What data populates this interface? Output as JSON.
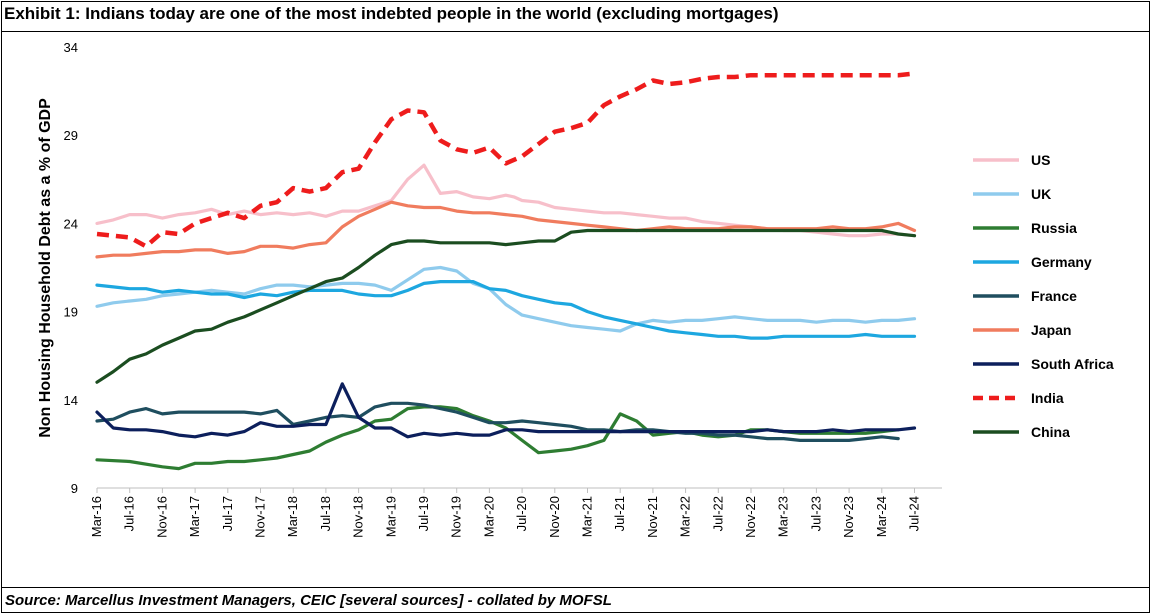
{
  "title": "Exhibit 1: Indians today are one of the most indebted people in the world (excluding mortgages)",
  "source": "Source: Marcellus Investment Managers, CEIC [several sources] - collated by MOFSL",
  "chart_data": {
    "type": "line",
    "ylabel": "Non Housing Household Debt as a % of GDP",
    "xlabel": "",
    "ylim": [
      9,
      34
    ],
    "yticks": [
      9,
      14,
      19,
      24,
      29,
      34
    ],
    "grid": false,
    "legend_position": "right",
    "x_tick_labels": [
      "Mar-16",
      "Jul-16",
      "Nov-16",
      "Mar-17",
      "Jul-17",
      "Nov-17",
      "Mar-18",
      "Jul-18",
      "Nov-18",
      "Mar-19",
      "Jul-19",
      "Nov-19",
      "Mar-20",
      "Jul-20",
      "Nov-20",
      "Mar-21",
      "Jul-21",
      "Nov-21",
      "Mar-22",
      "Jul-22",
      "Nov-22",
      "Mar-23",
      "Jul-23",
      "Nov-23",
      "Mar-24",
      "Jul-24"
    ],
    "x_note": "Quarterly observations; x index 0 = Mar-16, each tick = 1 quarter (4 months).",
    "series": [
      {
        "name": "US",
        "color": "#f7bfca",
        "dash": "solid",
        "x": [
          0,
          0.5,
          1,
          1.5,
          2,
          2.5,
          3,
          3.5,
          4,
          4.5,
          5,
          5.5,
          6,
          6.5,
          7,
          7.5,
          8,
          8.5,
          9,
          9.5,
          10,
          10.5,
          11,
          11.5,
          12,
          12.5,
          12.75,
          13,
          13.5,
          14,
          14.5,
          15,
          15.5,
          16,
          16.5,
          17,
          17.5,
          18,
          18.5,
          19,
          19.5,
          20,
          20.5,
          21,
          21.5,
          22,
          22.5,
          23,
          23.5,
          24,
          24.5,
          25
        ],
        "values": [
          24.0,
          24.2,
          24.5,
          24.5,
          24.3,
          24.5,
          24.6,
          24.8,
          24.5,
          24.7,
          24.5,
          24.6,
          24.5,
          24.6,
          24.4,
          24.7,
          24.7,
          25.0,
          25.3,
          26.5,
          27.3,
          25.7,
          25.8,
          25.5,
          25.4,
          25.6,
          25.5,
          25.3,
          25.2,
          24.9,
          24.8,
          24.7,
          24.6,
          24.6,
          24.5,
          24.4,
          24.3,
          24.3,
          24.1,
          24.0,
          23.9,
          23.8,
          23.7,
          23.6,
          23.6,
          23.5,
          23.4,
          23.3,
          23.3,
          23.4,
          23.4,
          23.3
        ]
      },
      {
        "name": "UK",
        "color": "#8fcbed",
        "dash": "solid",
        "x": [
          0,
          0.5,
          1,
          1.5,
          2,
          2.5,
          3,
          3.5,
          4,
          4.5,
          5,
          5.5,
          6,
          6.5,
          7,
          7.5,
          8,
          8.5,
          9,
          9.5,
          10,
          10.5,
          11,
          11.5,
          12,
          12.5,
          13,
          13.5,
          14,
          14.5,
          15,
          15.5,
          16,
          16.5,
          17,
          17.5,
          18,
          18.5,
          19,
          19.5,
          20,
          20.5,
          21,
          21.5,
          22,
          22.5,
          23,
          23.5,
          24,
          24.5,
          25
        ],
        "values": [
          19.3,
          19.5,
          19.6,
          19.7,
          19.9,
          20.0,
          20.1,
          20.2,
          20.1,
          20.0,
          20.3,
          20.5,
          20.5,
          20.4,
          20.5,
          20.6,
          20.6,
          20.5,
          20.2,
          20.8,
          21.4,
          21.5,
          21.3,
          20.6,
          20.3,
          19.4,
          18.8,
          18.6,
          18.4,
          18.2,
          18.1,
          18.0,
          17.9,
          18.3,
          18.5,
          18.4,
          18.5,
          18.5,
          18.6,
          18.7,
          18.6,
          18.5,
          18.5,
          18.5,
          18.4,
          18.5,
          18.5,
          18.4,
          18.5,
          18.5,
          18.6
        ]
      },
      {
        "name": "Russia",
        "color": "#2e7d32",
        "dash": "solid",
        "x": [
          0,
          1,
          2,
          2.5,
          3,
          3.5,
          4,
          4.5,
          5,
          5.5,
          6,
          6.5,
          7,
          7.5,
          8,
          8.5,
          9,
          9.5,
          10,
          10.5,
          11,
          11.5,
          12,
          12.5,
          13,
          13.5,
          14,
          14.5,
          15,
          15.5,
          16,
          16.5,
          17,
          17.5,
          18,
          18.5,
          19,
          19.5,
          20,
          20.5,
          21,
          21.5,
          22,
          22.5,
          23,
          23.5,
          24,
          24.5
        ],
        "values": [
          10.6,
          10.5,
          10.2,
          10.1,
          10.4,
          10.4,
          10.5,
          10.5,
          10.6,
          10.7,
          10.9,
          11.1,
          11.6,
          12.0,
          12.3,
          12.8,
          12.9,
          13.5,
          13.6,
          13.6,
          13.5,
          13.1,
          12.8,
          12.4,
          11.7,
          11.0,
          11.1,
          11.2,
          11.4,
          11.7,
          13.2,
          12.8,
          12.0,
          12.1,
          12.2,
          12.0,
          11.9,
          12.0,
          12.3,
          12.3,
          12.2,
          12.1,
          12.1,
          12.1,
          12.1,
          12.1,
          12.2,
          12.3
        ]
      },
      {
        "name": "Germany",
        "color": "#1da7e0",
        "dash": "solid",
        "x": [
          0,
          0.5,
          1,
          1.5,
          2,
          2.5,
          3,
          3.5,
          4,
          4.5,
          5,
          5.5,
          6,
          6.5,
          7,
          7.5,
          8,
          8.5,
          9,
          9.5,
          10,
          10.5,
          11,
          11.5,
          12,
          12.5,
          13,
          13.5,
          14,
          14.5,
          15,
          15.5,
          16,
          16.5,
          17,
          17.5,
          18,
          18.5,
          19,
          19.5,
          20,
          20.5,
          21,
          21.5,
          22,
          22.5,
          23,
          23.5,
          24,
          24.5,
          25
        ],
        "values": [
          20.5,
          20.4,
          20.3,
          20.3,
          20.1,
          20.2,
          20.1,
          20.0,
          20.0,
          19.8,
          20.0,
          19.9,
          20.1,
          20.2,
          20.2,
          20.2,
          20.0,
          19.9,
          19.9,
          20.2,
          20.6,
          20.7,
          20.7,
          20.7,
          20.3,
          20.2,
          19.9,
          19.7,
          19.5,
          19.4,
          19.0,
          18.7,
          18.5,
          18.3,
          18.1,
          17.9,
          17.8,
          17.7,
          17.6,
          17.6,
          17.5,
          17.5,
          17.6,
          17.6,
          17.6,
          17.6,
          17.6,
          17.7,
          17.6,
          17.6,
          17.6
        ]
      },
      {
        "name": "France",
        "color": "#1f4e5f",
        "dash": "solid",
        "x": [
          0,
          0.5,
          1,
          1.5,
          2,
          2.5,
          3,
          3.5,
          4,
          4.5,
          5,
          5.5,
          6,
          6.5,
          7,
          7.5,
          8,
          8.5,
          9,
          9.5,
          10,
          10.5,
          11,
          11.5,
          12,
          12.5,
          13,
          13.5,
          14,
          14.5,
          15,
          15.5,
          16,
          16.5,
          17,
          17.5,
          18,
          18.5,
          19,
          19.5,
          20,
          20.5,
          21,
          21.5,
          22,
          22.5,
          23,
          23.5,
          24,
          24.5
        ],
        "values": [
          12.8,
          12.9,
          13.3,
          13.5,
          13.2,
          13.3,
          13.3,
          13.3,
          13.3,
          13.3,
          13.2,
          13.4,
          12.6,
          12.8,
          13.0,
          13.1,
          13.0,
          13.6,
          13.8,
          13.8,
          13.7,
          13.5,
          13.3,
          13.0,
          12.7,
          12.7,
          12.8,
          12.7,
          12.6,
          12.5,
          12.3,
          12.3,
          12.2,
          12.3,
          12.3,
          12.2,
          12.1,
          12.1,
          12.0,
          12.0,
          11.9,
          11.8,
          11.8,
          11.7,
          11.7,
          11.7,
          11.7,
          11.8,
          11.9,
          11.8
        ]
      },
      {
        "name": "Japan",
        "color": "#f07c5e",
        "dash": "solid",
        "x": [
          0,
          0.5,
          1,
          1.5,
          2,
          2.5,
          3,
          3.5,
          4,
          4.5,
          5,
          5.5,
          6,
          6.5,
          7,
          7.5,
          8,
          8.5,
          9,
          9.5,
          10,
          10.5,
          11,
          11.5,
          12,
          12.5,
          13,
          13.5,
          14,
          14.5,
          15,
          15.5,
          16,
          16.5,
          17,
          17.5,
          18,
          18.5,
          19,
          19.5,
          20,
          20.5,
          21,
          21.5,
          22,
          22.5,
          23,
          23.5,
          24,
          24.5,
          25
        ],
        "values": [
          22.1,
          22.2,
          22.2,
          22.3,
          22.4,
          22.4,
          22.5,
          22.5,
          22.3,
          22.4,
          22.7,
          22.7,
          22.6,
          22.8,
          22.9,
          23.8,
          24.4,
          24.8,
          25.2,
          25.0,
          24.9,
          24.9,
          24.7,
          24.6,
          24.6,
          24.5,
          24.4,
          24.2,
          24.1,
          24.0,
          23.9,
          23.8,
          23.7,
          23.6,
          23.7,
          23.8,
          23.7,
          23.7,
          23.7,
          23.8,
          23.8,
          23.7,
          23.7,
          23.7,
          23.7,
          23.8,
          23.7,
          23.7,
          23.8,
          24.0,
          23.6
        ]
      },
      {
        "name": "South Africa",
        "color": "#0c1f5c",
        "dash": "solid",
        "x": [
          0,
          0.5,
          1,
          1.5,
          2,
          2.5,
          3,
          3.5,
          4,
          4.5,
          5,
          5.5,
          6,
          6.5,
          7,
          7.5,
          8,
          8.5,
          9,
          9.5,
          10,
          10.5,
          11,
          11.5,
          12,
          12.5,
          13,
          13.5,
          14,
          14.5,
          15,
          15.5,
          16,
          16.5,
          17,
          17.5,
          18,
          18.5,
          19,
          19.5,
          20,
          20.5,
          21,
          21.5,
          22,
          22.5,
          23,
          23.5,
          24,
          24.5,
          25
        ],
        "values": [
          13.3,
          12.4,
          12.3,
          12.3,
          12.2,
          12.0,
          11.9,
          12.1,
          12.0,
          12.2,
          12.7,
          12.5,
          12.5,
          12.6,
          12.6,
          14.9,
          13.0,
          12.4,
          12.4,
          11.9,
          12.1,
          12.0,
          12.1,
          12.0,
          12.0,
          12.3,
          12.3,
          12.2,
          12.2,
          12.2,
          12.2,
          12.2,
          12.2,
          12.2,
          12.2,
          12.2,
          12.2,
          12.2,
          12.2,
          12.2,
          12.2,
          12.3,
          12.2,
          12.2,
          12.2,
          12.3,
          12.2,
          12.3,
          12.3,
          12.3,
          12.4
        ]
      },
      {
        "name": "India",
        "color": "#ee1c1c",
        "dash": "dashed",
        "x": [
          0,
          0.5,
          1,
          1.5,
          2,
          2.5,
          3,
          3.5,
          4,
          4.5,
          5,
          5.5,
          6,
          6.5,
          7,
          7.5,
          8,
          8.5,
          9,
          9.5,
          10,
          10.5,
          11,
          11.5,
          12,
          12.5,
          13,
          13.5,
          14,
          14.5,
          15,
          15.5,
          16,
          16.5,
          17,
          17.5,
          18,
          18.5,
          19,
          19.5,
          20,
          20.5,
          21,
          21.5,
          22,
          22.5,
          23,
          23.5,
          24,
          24.5,
          25
        ],
        "values": [
          23.4,
          23.3,
          23.2,
          22.7,
          23.5,
          23.4,
          24.0,
          24.3,
          24.6,
          24.3,
          25.0,
          25.2,
          26.0,
          25.8,
          26.0,
          26.9,
          27.1,
          28.6,
          29.9,
          30.4,
          30.3,
          28.7,
          28.2,
          28.0,
          28.3,
          27.4,
          27.8,
          28.5,
          29.2,
          29.4,
          29.7,
          30.7,
          31.2,
          31.6,
          32.1,
          31.9,
          32.0,
          32.2,
          32.3,
          32.3,
          32.4,
          32.4,
          32.4,
          32.4,
          32.4,
          32.4,
          32.4,
          32.4,
          32.4,
          32.4,
          32.5
        ]
      },
      {
        "name": "China",
        "color": "#1b4d20",
        "dash": "solid",
        "x": [
          0,
          0.5,
          1,
          1.5,
          2,
          2.5,
          3,
          3.5,
          4,
          4.5,
          5,
          5.5,
          6,
          6.5,
          7,
          7.5,
          8,
          8.5,
          9,
          9.5,
          10,
          10.5,
          11,
          11.5,
          12,
          12.5,
          13,
          13.5,
          14,
          14.5,
          15,
          15.5,
          16,
          16.5,
          17,
          17.5,
          18,
          18.5,
          19,
          19.5,
          20,
          20.5,
          21,
          21.5,
          22,
          22.5,
          23,
          23.5,
          24,
          24.5,
          25
        ],
        "values": [
          15.0,
          15.6,
          16.3,
          16.6,
          17.1,
          17.5,
          17.9,
          18.0,
          18.4,
          18.7,
          19.1,
          19.5,
          19.9,
          20.3,
          20.7,
          20.9,
          21.5,
          22.2,
          22.8,
          23.0,
          23.0,
          22.9,
          22.9,
          22.9,
          22.9,
          22.8,
          22.9,
          23.0,
          23.0,
          23.5,
          23.6,
          23.6,
          23.6,
          23.6,
          23.6,
          23.6,
          23.6,
          23.6,
          23.6,
          23.6,
          23.6,
          23.6,
          23.6,
          23.6,
          23.6,
          23.6,
          23.6,
          23.6,
          23.6,
          23.4,
          23.3
        ]
      }
    ]
  }
}
